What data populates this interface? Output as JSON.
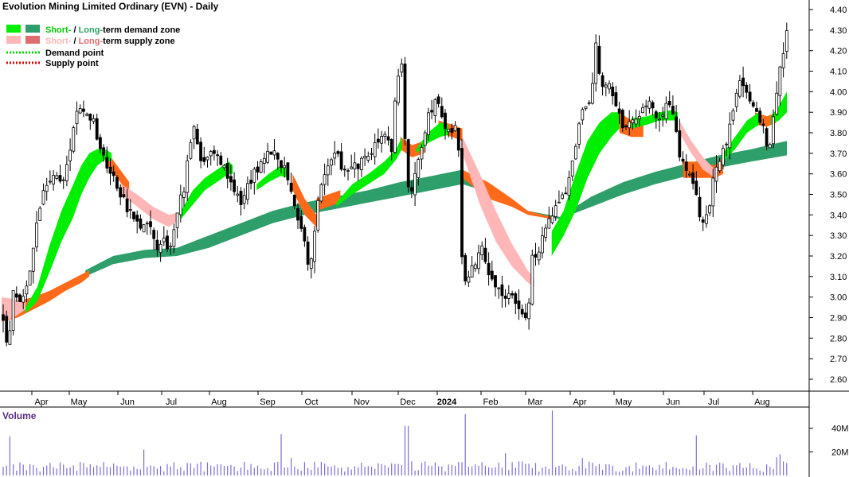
{
  "chart_data": {
    "type": "candlestick",
    "title": "Evolution Mining Limited Ordinary (EVN) - Daily",
    "legend": [
      {
        "text_a": "Short-",
        "text_b": " / ",
        "text_c": "Long-",
        "text_d": "term demand zone",
        "color_short": "#00ee00",
        "color_long": "#2e9e6a"
      },
      {
        "text_a": "Short-",
        "text_b": " / ",
        "text_c": "Long-",
        "text_d": "term supply zone",
        "color_short": "#ffb6b6",
        "color_long": "#ff6a1a"
      },
      {
        "text": "Demand point",
        "color": "#00dd00"
      },
      {
        "text": "Supply point",
        "color": "#dd0000"
      }
    ],
    "legend_placement": "top-left",
    "x_tick_labels": [
      "Apr",
      "May",
      "Jun",
      "Jul",
      "Aug",
      "Sep",
      "Oct",
      "Nov",
      "Dec",
      "2024",
      "Feb",
      "Mar",
      "Apr",
      "May",
      "Jun",
      "Jul",
      "Aug"
    ],
    "y_tick_labels": [
      "4.40",
      "4.30",
      "4.20",
      "4.10",
      "4.00",
      "3.90",
      "3.80",
      "3.70",
      "3.60",
      "3.50",
      "3.40",
      "3.30",
      "3.20",
      "3.10",
      "3.00",
      "2.90",
      "2.80",
      "2.70",
      "2.60"
    ],
    "ylim": [
      2.52,
      4.45
    ],
    "price_path": [
      [
        0,
        2.9
      ],
      [
        8,
        2.75
      ],
      [
        15,
        3.05
      ],
      [
        25,
        2.98
      ],
      [
        35,
        3.1
      ],
      [
        45,
        3.4
      ],
      [
        55,
        3.55
      ],
      [
        65,
        3.58
      ],
      [
        75,
        3.55
      ],
      [
        85,
        3.7
      ],
      [
        95,
        3.92
      ],
      [
        105,
        3.88
      ],
      [
        115,
        3.85
      ],
      [
        125,
        3.7
      ],
      [
        135,
        3.6
      ],
      [
        145,
        3.55
      ],
      [
        155,
        3.45
      ],
      [
        165,
        3.4
      ],
      [
        175,
        3.32
      ],
      [
        185,
        3.38
      ],
      [
        195,
        3.25
      ],
      [
        205,
        3.28
      ],
      [
        212,
        3.23
      ],
      [
        220,
        3.42
      ],
      [
        230,
        3.55
      ],
      [
        240,
        3.85
      ],
      [
        250,
        3.65
      ],
      [
        260,
        3.7
      ],
      [
        270,
        3.72
      ],
      [
        280,
        3.62
      ],
      [
        290,
        3.55
      ],
      [
        300,
        3.45
      ],
      [
        310,
        3.55
      ],
      [
        320,
        3.62
      ],
      [
        330,
        3.7
      ],
      [
        340,
        3.72
      ],
      [
        350,
        3.65
      ],
      [
        360,
        3.58
      ],
      [
        370,
        3.42
      ],
      [
        380,
        3.25
      ],
      [
        385,
        3.12
      ],
      [
        392,
        3.3
      ],
      [
        400,
        3.55
      ],
      [
        410,
        3.65
      ],
      [
        420,
        3.7
      ],
      [
        430,
        3.6
      ],
      [
        440,
        3.62
      ],
      [
        450,
        3.65
      ],
      [
        460,
        3.68
      ],
      [
        470,
        3.75
      ],
      [
        480,
        3.82
      ],
      [
        490,
        3.7
      ],
      [
        495,
        4.05
      ],
      [
        502,
        4.15
      ],
      [
        508,
        3.55
      ],
      [
        515,
        3.52
      ],
      [
        525,
        3.7
      ],
      [
        535,
        3.88
      ],
      [
        545,
        3.95
      ],
      [
        555,
        3.85
      ],
      [
        565,
        3.78
      ],
      [
        572,
        3.9
      ],
      [
        576,
        3.25
      ],
      [
        582,
        3.05
      ],
      [
        592,
        3.15
      ],
      [
        602,
        3.25
      ],
      [
        610,
        3.1
      ],
      [
        620,
        3.05
      ],
      [
        630,
        3.02
      ],
      [
        640,
        3.0
      ],
      [
        650,
        2.92
      ],
      [
        660,
        2.9
      ],
      [
        665,
        3.18
      ],
      [
        672,
        3.22
      ],
      [
        680,
        3.3
      ],
      [
        690,
        3.4
      ],
      [
        700,
        3.45
      ],
      [
        710,
        3.55
      ],
      [
        720,
        3.75
      ],
      [
        730,
        3.92
      ],
      [
        740,
        3.95
      ],
      [
        745,
        4.25
      ],
      [
        750,
        4.05
      ],
      [
        760,
        4.05
      ],
      [
        770,
        3.95
      ],
      [
        780,
        3.8
      ],
      [
        790,
        3.85
      ],
      [
        800,
        3.9
      ],
      [
        810,
        3.95
      ],
      [
        820,
        3.88
      ],
      [
        830,
        3.9
      ],
      [
        840,
        3.95
      ],
      [
        850,
        3.7
      ],
      [
        860,
        3.6
      ],
      [
        868,
        3.55
      ],
      [
        875,
        3.4
      ],
      [
        880,
        3.35
      ],
      [
        888,
        3.45
      ],
      [
        895,
        3.62
      ],
      [
        905,
        3.7
      ],
      [
        915,
        3.85
      ],
      [
        925,
        4.05
      ],
      [
        935,
        4.0
      ],
      [
        945,
        3.9
      ],
      [
        955,
        3.85
      ],
      [
        962,
        3.7
      ],
      [
        970,
        3.95
      ],
      [
        978,
        4.15
      ],
      [
        985,
        4.3
      ]
    ],
    "demand_zone_short": [
      {
        "x": [
          30,
          45,
          60,
          75,
          90,
          100,
          110,
          120,
          130,
          138
        ],
        "upper": [
          2.95,
          3.05,
          3.25,
          3.42,
          3.55,
          3.64,
          3.7,
          3.72,
          3.72,
          3.7
        ],
        "lower": [
          2.92,
          2.98,
          3.12,
          3.27,
          3.39,
          3.5,
          3.58,
          3.64,
          3.67,
          3.66
        ]
      },
      {
        "x": [
          225,
          240,
          255,
          270,
          285,
          290
        ],
        "upper": [
          3.42,
          3.52,
          3.58,
          3.62,
          3.66,
          3.64
        ],
        "lower": [
          3.38,
          3.45,
          3.52,
          3.56,
          3.6,
          3.6
        ]
      },
      {
        "x": [
          320,
          335,
          350,
          360
        ],
        "upper": [
          3.55,
          3.6,
          3.64,
          3.62
        ],
        "lower": [
          3.52,
          3.56,
          3.59,
          3.58
        ]
      },
      {
        "x": [
          420,
          440,
          460,
          480,
          495,
          502
        ],
        "upper": [
          3.46,
          3.55,
          3.6,
          3.66,
          3.72,
          3.78
        ],
        "lower": [
          3.44,
          3.5,
          3.55,
          3.6,
          3.67,
          3.72
        ]
      },
      {
        "x": [
          520,
          535,
          550,
          560
        ],
        "upper": [
          3.72,
          3.8,
          3.85,
          3.84
        ],
        "lower": [
          3.7,
          3.75,
          3.78,
          3.79
        ]
      },
      {
        "x": [
          690,
          705,
          720,
          735,
          750,
          765,
          775
        ],
        "upper": [
          3.32,
          3.42,
          3.6,
          3.76,
          3.85,
          3.9,
          3.9
        ],
        "lower": [
          3.2,
          3.3,
          3.42,
          3.58,
          3.7,
          3.78,
          3.82
        ]
      },
      {
        "x": [
          790,
          810,
          825,
          840,
          848
        ],
        "upper": [
          3.87,
          3.88,
          3.9,
          3.91,
          3.9
        ],
        "lower": [
          3.82,
          3.84,
          3.86,
          3.86,
          3.86
        ]
      },
      {
        "x": [
          905,
          920,
          935,
          950
        ],
        "upper": [
          3.7,
          3.78,
          3.86,
          3.9
        ],
        "lower": [
          3.66,
          3.72,
          3.8,
          3.84
        ]
      },
      {
        "x": [
          965,
          975,
          985
        ],
        "upper": [
          3.88,
          3.93,
          4.0
        ],
        "lower": [
          3.84,
          3.86,
          3.9
        ]
      }
    ],
    "demand_zone_long": {
      "x": [
        105,
        140,
        180,
        220,
        260,
        300,
        340,
        380,
        420,
        460,
        500,
        540,
        578,
        620,
        660,
        700,
        740,
        780,
        820,
        860,
        900,
        940,
        985
      ],
      "upper": [
        3.13,
        3.2,
        3.23,
        3.24,
        3.3,
        3.36,
        3.42,
        3.46,
        3.49,
        3.52,
        3.56,
        3.59,
        3.62,
        3.53,
        3.42,
        3.39,
        3.49,
        3.56,
        3.61,
        3.65,
        3.69,
        3.72,
        3.76
      ],
      "lower": [
        3.1,
        3.16,
        3.19,
        3.2,
        3.24,
        3.3,
        3.36,
        3.4,
        3.43,
        3.46,
        3.49,
        3.52,
        3.55,
        3.5,
        3.41,
        3.38,
        3.44,
        3.5,
        3.55,
        3.59,
        3.63,
        3.66,
        3.69
      ]
    },
    "supply_zone_short": [
      {
        "x": [
          0,
          15,
          30
        ],
        "upper": [
          3.0,
          2.99,
          2.98
        ],
        "lower": [
          2.88,
          2.9,
          2.94
        ]
      },
      {
        "x": [
          150,
          170,
          190,
          210,
          220
        ],
        "upper": [
          3.55,
          3.5,
          3.44,
          3.4,
          3.41
        ],
        "lower": [
          3.5,
          3.44,
          3.38,
          3.34,
          3.37
        ]
      },
      {
        "x": [
          578,
          600,
          620,
          640,
          660,
          668
        ],
        "upper": [
          3.78,
          3.6,
          3.42,
          3.26,
          3.13,
          3.09
        ],
        "lower": [
          3.7,
          3.45,
          3.27,
          3.15,
          3.07,
          3.05
        ]
      },
      {
        "x": [
          850,
          865,
          880,
          895
        ],
        "upper": [
          3.86,
          3.76,
          3.68,
          3.62
        ],
        "lower": [
          3.8,
          3.7,
          3.62,
          3.58
        ]
      }
    ],
    "supply_zone_long": [
      {
        "x": [
          0,
          20,
          40,
          60,
          80,
          100,
          110
        ],
        "upper": [
          2.95,
          2.98,
          3.0,
          3.03,
          3.07,
          3.11,
          3.13
        ],
        "lower": [
          2.88,
          2.9,
          2.94,
          2.98,
          3.03,
          3.07,
          3.1
        ]
      },
      {
        "x": [
          130,
          145,
          160
        ],
        "upper": [
          3.72,
          3.64,
          3.56
        ],
        "lower": [
          3.66,
          3.58,
          3.5
        ]
      },
      {
        "x": [
          365,
          380,
          395
        ],
        "upper": [
          3.6,
          3.48,
          3.4
        ],
        "lower": [
          3.52,
          3.4,
          3.34
        ]
      },
      {
        "x": [
          395,
          410,
          425
        ],
        "upper": [
          3.48,
          3.5,
          3.52
        ],
        "lower": [
          3.42,
          3.44,
          3.46
        ]
      },
      {
        "x": [
          500,
          515,
          530
        ],
        "upper": [
          3.78,
          3.74,
          3.76
        ],
        "lower": [
          3.72,
          3.68,
          3.7
        ]
      },
      {
        "x": [
          548,
          565,
          578
        ],
        "upper": [
          3.86,
          3.84,
          3.82
        ],
        "lower": [
          3.8,
          3.78,
          3.76
        ]
      },
      {
        "x": [
          578,
          610,
          640,
          660,
          690
        ],
        "upper": [
          3.62,
          3.56,
          3.48,
          3.42,
          3.39
        ],
        "lower": [
          3.58,
          3.48,
          3.44,
          3.4,
          3.38
        ]
      },
      {
        "x": [
          775,
          790,
          805
        ],
        "upper": [
          3.9,
          3.86,
          3.84
        ],
        "lower": [
          3.8,
          3.78,
          3.78
        ]
      },
      {
        "x": [
          855,
          875,
          895,
          905
        ],
        "upper": [
          3.66,
          3.66,
          3.64,
          3.68
        ],
        "lower": [
          3.58,
          3.58,
          3.58,
          3.6
        ]
      },
      {
        "x": [
          945,
          960,
          972
        ],
        "upper": [
          3.9,
          3.88,
          3.9
        ],
        "lower": [
          3.84,
          3.83,
          3.85
        ]
      }
    ],
    "volume": {
      "label": "Volume",
      "y_tick_labels": [
        "40M",
        "20M"
      ],
      "ylim": [
        0,
        58
      ],
      "bar_color": "#7b6fd6",
      "spikes": [
        [
          12,
          25
        ],
        [
          178,
          22
        ],
        [
          352,
          35
        ],
        [
          508,
          42
        ],
        [
          580,
          52
        ],
        [
          690,
          55
        ],
        [
          870,
          34
        ],
        [
          975,
          18
        ]
      ]
    },
    "colors": {
      "demand_short": "#00ee00",
      "demand_long": "#2e9e6a",
      "supply_short": "#ffb6b6",
      "supply_long": "#ff6a1a",
      "candle": "#000000"
    }
  }
}
